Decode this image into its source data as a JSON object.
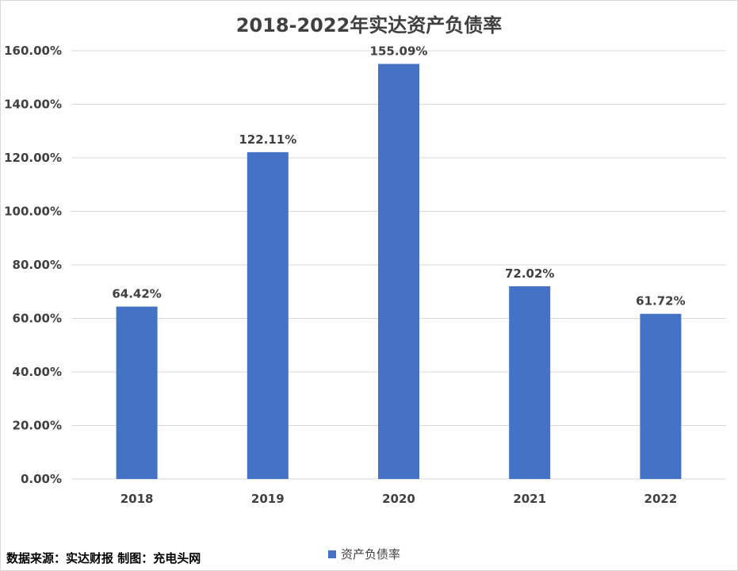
{
  "chart_data": {
    "type": "bar",
    "title": "2018-2022年实达资产负债率",
    "categories": [
      "2018",
      "2019",
      "2020",
      "2021",
      "2022"
    ],
    "series": [
      {
        "name": "资产负债率",
        "values": [
          64.42,
          122.11,
          155.09,
          72.02,
          61.72
        ]
      }
    ],
    "data_labels": [
      "64.42%",
      "122.11%",
      "155.09%",
      "72.02%",
      "61.72%"
    ],
    "ylim": [
      0,
      160
    ],
    "yticks": [
      "0.00%",
      "20.00%",
      "40.00%",
      "60.00%",
      "80.00%",
      "100.00%",
      "120.00%",
      "140.00%",
      "160.00%"
    ],
    "grid": true,
    "legend": "bottom",
    "bar_color": "#4472c4",
    "grid_color": "#d9d9d9",
    "text_color": "#404040"
  },
  "footer": {
    "source": "数据来源：实达财报  制图：充电头网"
  }
}
